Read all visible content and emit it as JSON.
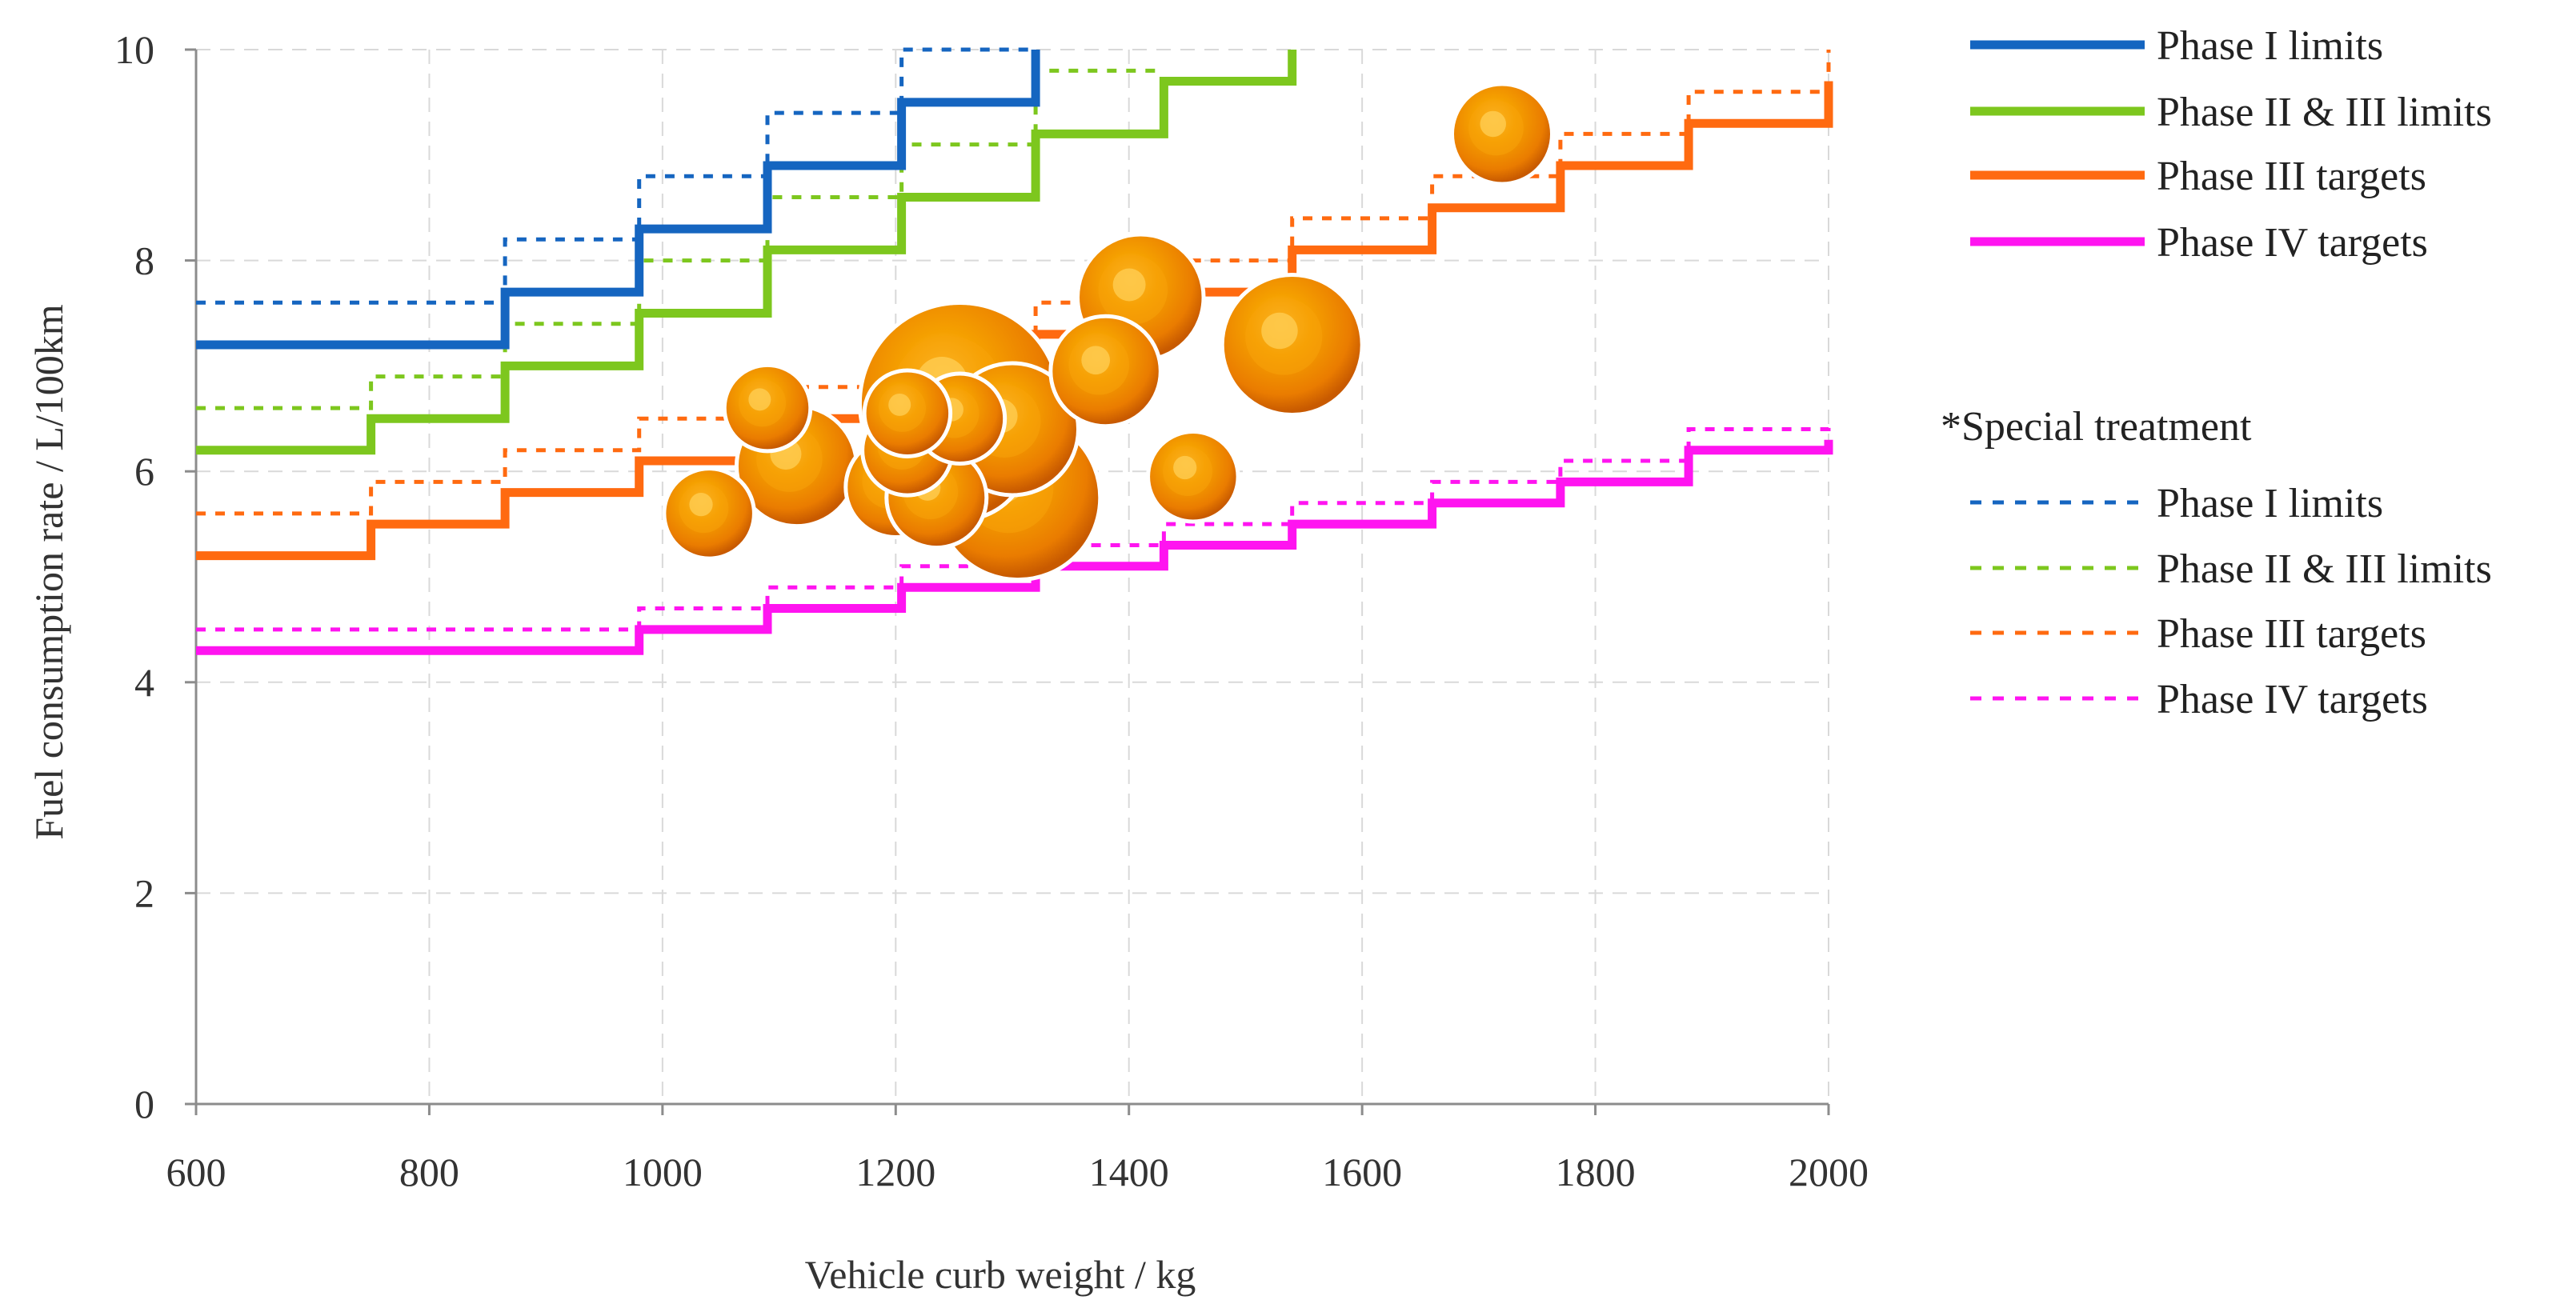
{
  "chart_data": {
    "type": "scatter",
    "xlabel": "Vehicle curb weight / kg",
    "ylabel": "Fuel consumption rate / L/100km",
    "xlim": [
      600,
      2000
    ],
    "ylim": [
      0,
      10
    ],
    "xticks": [
      600,
      800,
      1000,
      1200,
      1400,
      1600,
      1800,
      2000
    ],
    "yticks": [
      0,
      2,
      4,
      6,
      8,
      10
    ],
    "grid": true,
    "colors": {
      "phase1": "#1565c0",
      "phase23": "#7dc71e",
      "phase3": "#ff6a10",
      "phase4": "#ff14f0",
      "bubble": "#f08a00"
    },
    "series": [
      {
        "name": "Phase I limits",
        "style": "solid",
        "color": "#1565c0",
        "x": [
          600,
          865,
          865,
          980,
          980,
          1090,
          1090,
          1205,
          1205,
          1320,
          1320
        ],
        "y": [
          7.2,
          7.2,
          7.7,
          7.7,
          8.3,
          8.3,
          8.9,
          8.9,
          9.5,
          9.5,
          10.0
        ]
      },
      {
        "name": "Phase II & III limits",
        "style": "solid",
        "color": "#7dc71e",
        "x": [
          600,
          750,
          750,
          865,
          865,
          980,
          980,
          1090,
          1090,
          1205,
          1205,
          1320,
          1320,
          1430,
          1430,
          1540,
          1540
        ],
        "y": [
          6.2,
          6.2,
          6.5,
          6.5,
          7.0,
          7.0,
          7.5,
          7.5,
          8.1,
          8.1,
          8.6,
          8.6,
          9.2,
          9.2,
          9.7,
          9.7,
          10.0
        ]
      },
      {
        "name": "Phase III targets",
        "style": "solid",
        "color": "#ff6a10",
        "x": [
          600,
          750,
          750,
          865,
          865,
          980,
          980,
          1090,
          1090,
          1205,
          1205,
          1320,
          1320,
          1430,
          1430,
          1540,
          1540,
          1660,
          1660,
          1770,
          1770,
          1880,
          1880,
          2000,
          2000
        ],
        "y": [
          5.2,
          5.2,
          5.5,
          5.5,
          5.8,
          5.8,
          6.1,
          6.1,
          6.5,
          6.5,
          6.9,
          6.9,
          7.3,
          7.3,
          7.7,
          7.7,
          8.1,
          8.1,
          8.5,
          8.5,
          8.9,
          8.9,
          9.3,
          9.3,
          9.7
        ]
      },
      {
        "name": "Phase IV targets",
        "style": "solid",
        "color": "#ff14f0",
        "x": [
          600,
          980,
          980,
          1090,
          1090,
          1205,
          1205,
          1320,
          1320,
          1430,
          1430,
          1540,
          1540,
          1660,
          1660,
          1770,
          1770,
          1880,
          1880,
          2000,
          2000
        ],
        "y": [
          4.3,
          4.3,
          4.5,
          4.5,
          4.7,
          4.7,
          4.9,
          4.9,
          5.1,
          5.1,
          5.3,
          5.3,
          5.5,
          5.5,
          5.7,
          5.7,
          5.9,
          5.9,
          6.2,
          6.2,
          6.3
        ]
      },
      {
        "name": "Phase I limits",
        "style": "dotted",
        "color": "#1565c0",
        "x": [
          600,
          865,
          865,
          980,
          980,
          1090,
          1090,
          1205,
          1205,
          1320,
          1320
        ],
        "y": [
          7.6,
          7.6,
          8.2,
          8.2,
          8.8,
          8.8,
          9.4,
          9.4,
          10.0,
          10.0,
          10.0
        ]
      },
      {
        "name": "Phase II & III limits",
        "style": "dotted",
        "color": "#7dc71e",
        "x": [
          600,
          750,
          750,
          865,
          865,
          980,
          980,
          1090,
          1090,
          1205,
          1205,
          1320,
          1320,
          1430
        ],
        "y": [
          6.6,
          6.6,
          6.9,
          6.9,
          7.4,
          7.4,
          8.0,
          8.0,
          8.6,
          8.6,
          9.1,
          9.1,
          9.8,
          9.8
        ]
      },
      {
        "name": "Phase III targets",
        "style": "dotted",
        "color": "#ff6a10",
        "x": [
          600,
          750,
          750,
          865,
          865,
          980,
          980,
          1090,
          1090,
          1205,
          1205,
          1320,
          1320,
          1430,
          1430,
          1540,
          1540,
          1660,
          1660,
          1770,
          1770,
          1880,
          1880,
          2000,
          2000
        ],
        "y": [
          5.6,
          5.6,
          5.9,
          5.9,
          6.2,
          6.2,
          6.5,
          6.5,
          6.8,
          6.8,
          7.2,
          7.2,
          7.6,
          7.6,
          8.0,
          8.0,
          8.4,
          8.4,
          8.8,
          8.8,
          9.2,
          9.2,
          9.6,
          9.6,
          10.0
        ]
      },
      {
        "name": "Phase IV targets",
        "style": "dotted",
        "color": "#ff14f0",
        "x": [
          600,
          980,
          980,
          1090,
          1090,
          1205,
          1205,
          1320,
          1320,
          1430,
          1430,
          1540,
          1540,
          1660,
          1660,
          1770,
          1770,
          1880,
          1880,
          2000,
          2000
        ],
        "y": [
          4.5,
          4.5,
          4.7,
          4.7,
          4.9,
          4.9,
          5.1,
          5.1,
          5.3,
          5.3,
          5.5,
          5.5,
          5.7,
          5.7,
          5.9,
          5.9,
          6.1,
          6.1,
          6.4,
          6.4,
          6.5
        ]
      }
    ],
    "bubbles": [
      {
        "x": 1255,
        "y": 6.65,
        "size": 1.0
      },
      {
        "x": 1305,
        "y": 5.75,
        "size": 0.82
      },
      {
        "x": 1300,
        "y": 6.4,
        "size": 0.66
      },
      {
        "x": 1255,
        "y": 6.2,
        "size": 0.7
      },
      {
        "x": 1540,
        "y": 7.2,
        "size": 0.7
      },
      {
        "x": 1410,
        "y": 7.65,
        "size": 0.63
      },
      {
        "x": 1115,
        "y": 6.05,
        "size": 0.6
      },
      {
        "x": 1380,
        "y": 6.95,
        "size": 0.55
      },
      {
        "x": 1200,
        "y": 5.85,
        "size": 0.5
      },
      {
        "x": 1235,
        "y": 5.75,
        "size": 0.5
      },
      {
        "x": 1720,
        "y": 9.2,
        "size": 0.5
      },
      {
        "x": 1040,
        "y": 5.6,
        "size": 0.45
      },
      {
        "x": 1210,
        "y": 6.2,
        "size": 0.45
      },
      {
        "x": 1255,
        "y": 6.5,
        "size": 0.45
      },
      {
        "x": 1455,
        "y": 5.95,
        "size": 0.45
      },
      {
        "x": 1090,
        "y": 6.6,
        "size": 0.43
      },
      {
        "x": 1210,
        "y": 6.55,
        "size": 0.43
      }
    ],
    "legend": {
      "placement": "right",
      "main": [
        "Phase I limits",
        "Phase II & III limits",
        "Phase III targets",
        "Phase IV targets"
      ],
      "special_heading": "*Special treatment",
      "special": [
        "Phase I limits",
        "Phase II & III limits",
        "Phase III targets",
        "Phase IV targets"
      ]
    }
  }
}
